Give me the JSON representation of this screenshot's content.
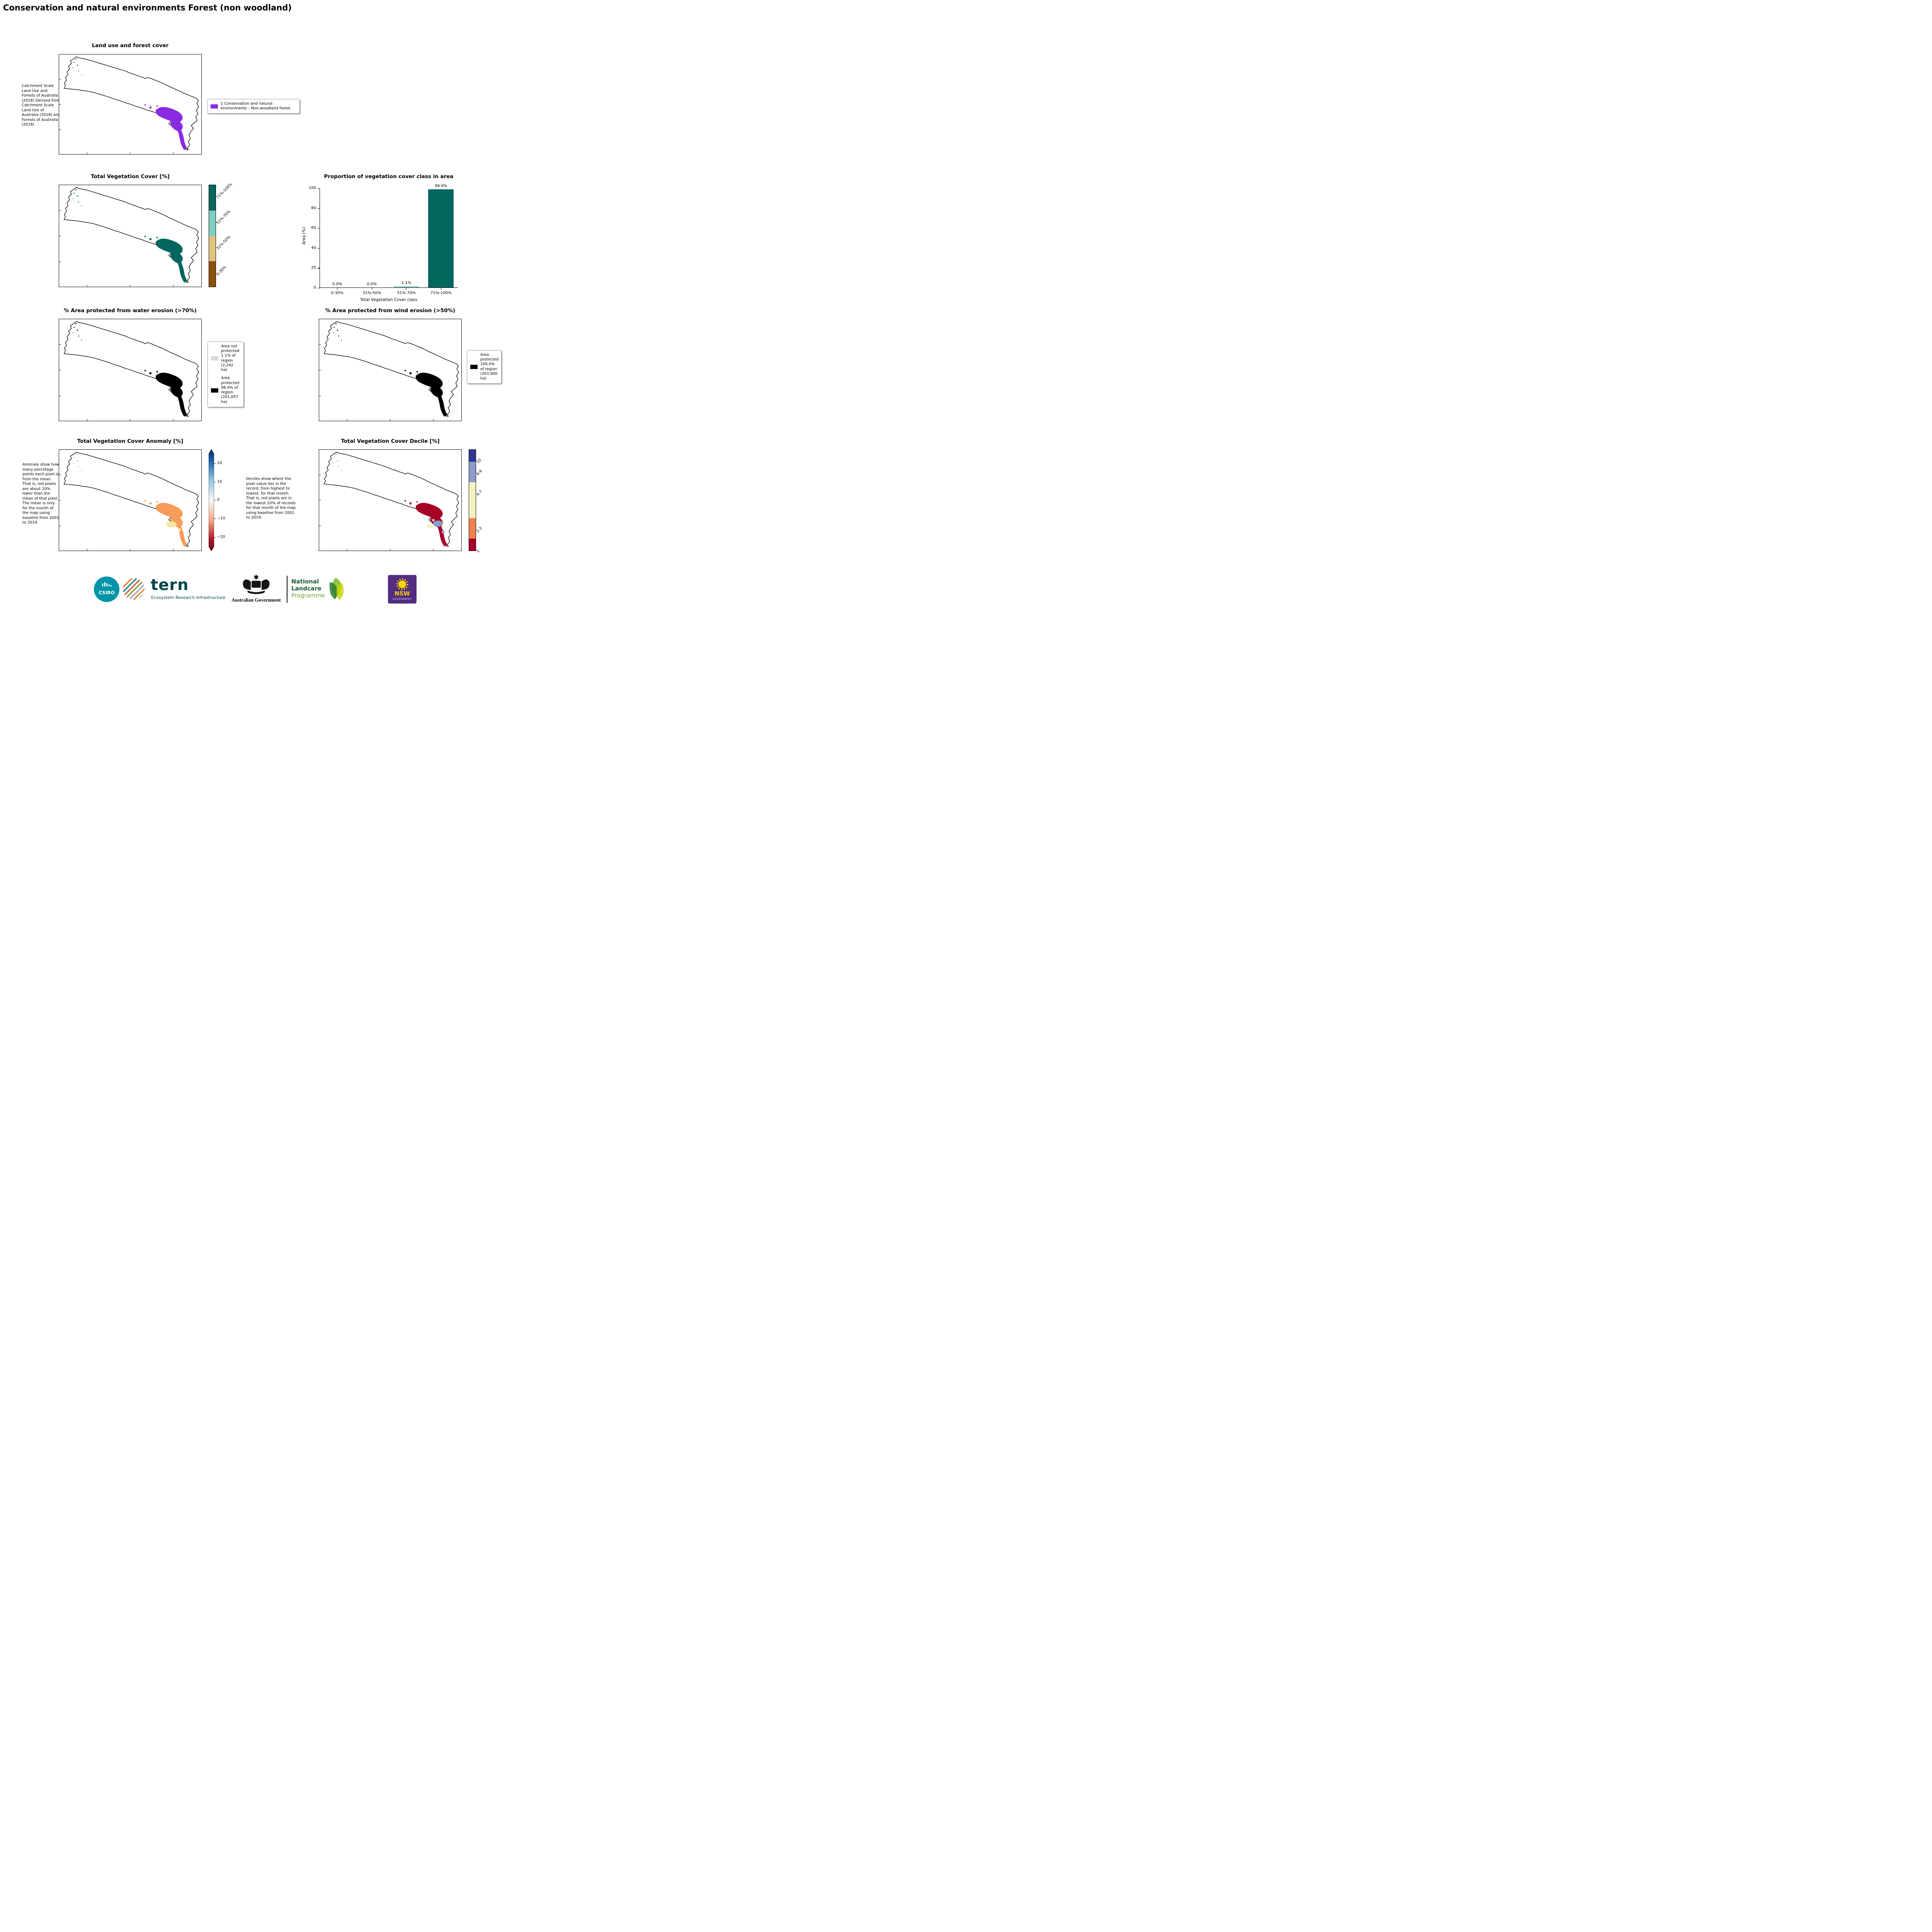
{
  "page": {
    "title": "Conservation and natural environments Forest (non woodland)"
  },
  "colors": {
    "land_use_purple": "#8A2BE2",
    "veg_dark_teal": "#01665E",
    "veg_light_teal": "#80CDC1",
    "veg_tan": "#DFC27D",
    "veg_brown": "#8C510A",
    "protected_black": "#000000",
    "not_protected_gray": "#D9D9D9",
    "anomaly_orange": "#F89C5B",
    "anomaly_yellow": "#F6E8A0",
    "decile_red": "#A50026",
    "decile_orange": "#F08250",
    "decile_yellow": "#F6F2BF",
    "decile_lightblue": "#8A9CC8",
    "decile_blue": "#313695",
    "csiro_teal": "#0094A8",
    "tern_teal": "#00454A",
    "landcare_green": "#1A5B2A",
    "landcare_light_green": "#6FA22E",
    "nsw_purple": "#522D80",
    "nsw_yellow": "#FFD500"
  },
  "land_use": {
    "title": "Land use and forest cover",
    "caption": "Catchment Scale Land Use and Forests of Australia (2018) Derived from Catchment Scale Land Use of Australia (2018) and Forests of Australia (2018)",
    "legend_label": "1 Conservation and natural environments – Non-woodland forest"
  },
  "veg_cover": {
    "title": "Total Vegetation Cover [%]",
    "classes": [
      {
        "label": "71%-100%",
        "color": "#01665E"
      },
      {
        "label": "51%-70%",
        "color": "#80CDC1"
      },
      {
        "label": "31%-50%",
        "color": "#DFC27D"
      },
      {
        "label": "0-30%",
        "color": "#8C510A"
      }
    ]
  },
  "chart_data": {
    "type": "bar",
    "title": "Proportion of vegetation cover class in area",
    "categories": [
      "0-30%",
      "31%-50%",
      "51%-70%",
      "71%-100%"
    ],
    "values": [
      0.0,
      0.0,
      1.1,
      98.9
    ],
    "bar_labels": [
      "0.0%",
      "0.0%",
      "1.1%",
      "98.9%"
    ],
    "bar_colors": [
      "#8C510A",
      "#DFC27D",
      "#80CDC1",
      "#01665E"
    ],
    "xlabel": "Total Vegetation Cover class",
    "ylabel": "Area (%)",
    "ylim": [
      0,
      100
    ],
    "yticks": [
      "0",
      "20",
      "40",
      "60",
      "80",
      "100"
    ],
    "grid": false,
    "legend": "none"
  },
  "water_erosion": {
    "title": "% Area protected from water erosion (>70%)",
    "legend": [
      {
        "label": "Area not protected 1.1% of region (2,242 ha)",
        "color": "#D9D9D9"
      },
      {
        "label": "Area protected 98.9% of region (201,657 ha)",
        "color": "#000000"
      }
    ]
  },
  "wind_erosion": {
    "title": "% Area protected from wind erosion (>50%)",
    "legend": [
      {
        "label": "Area protected 100.0% of region (203,900 ha)",
        "color": "#000000"
      }
    ]
  },
  "anomaly": {
    "title": "Total Vegetation Cover Anomaly [%]",
    "caption": "Anomaly show how many percetage points each pixel is from the mean. That is, red pixels are about 20% lower than the mean of that pixel. The mean is only for the month of the map using baseline from 2001 to 2019.",
    "colorbar_ticks": [
      "20",
      "10",
      "0",
      "−10",
      "−20"
    ]
  },
  "decile": {
    "title": "Total Vegetation Cover Decile [%]",
    "caption": "Deciles show where the pixel value lies in the record, from highest to lowest, for that month. That is, red pixels are in the lowest 10% of records for that month of the map using baseline from 2001 to 2019.",
    "classes": [
      {
        "label": "10",
        "color": "#313695"
      },
      {
        "label": "8-9",
        "color": "#8A9CC8"
      },
      {
        "label": "4-7",
        "color": "#F6F2BF"
      },
      {
        "label": "2-3",
        "color": "#F08250"
      },
      {
        "label": "1",
        "color": "#A50026"
      }
    ]
  },
  "footer": {
    "csiro": "CSIRO",
    "tern": "tern",
    "tern_subtitle": "Ecosystem Research Infrastructure",
    "aus_gov": "Australian Government",
    "landcare_lines": [
      "National",
      "Landcare",
      "Programme"
    ],
    "nsw": "NSW",
    "nsw_sub": "GOVERNMENT"
  }
}
